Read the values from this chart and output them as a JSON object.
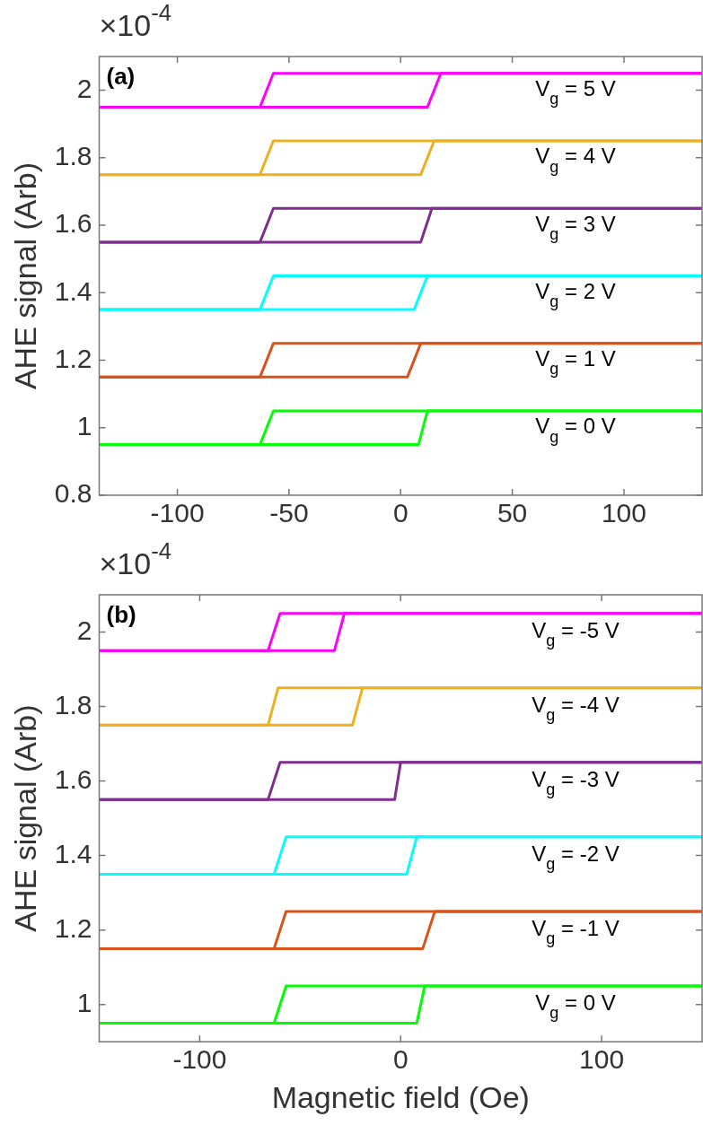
{
  "chart_data": [
    {
      "type": "line",
      "ylabel": "AHE signal (Arb)",
      "annotations": [
        "(a)",
        "×10$^{-4}$"
      ],
      "xlim": [
        -135,
        135
      ],
      "xticks": [
        -100,
        -50,
        0,
        50,
        100
      ],
      "ylim": [
        0.8,
        2.1
      ],
      "yticks": [
        0.8,
        1,
        1.2,
        1.4,
        1.6,
        1.8,
        2
      ],
      "series": [
        {
          "name": "V$_{g}$ = 5 V",
          "color": "#ff00ff",
          "x": [
            -135,
            12,
            18,
            135
          ],
          "values": [
            1.95,
            1.95,
            2.05,
            2.05
          ]
        },
        {
          "color": "#ff00ff",
          "x": [
            -135,
            -63,
            -57,
            135
          ],
          "values": [
            1.95,
            1.95,
            2.05,
            2.05
          ]
        },
        {
          "name": "V$_{g}$ = 4 V",
          "color": "#edb120",
          "x": [
            -135,
            9,
            15,
            135
          ],
          "values": [
            1.75,
            1.75,
            1.85,
            1.85
          ]
        },
        {
          "color": "#edb120",
          "x": [
            -135,
            -63,
            -57,
            135
          ],
          "values": [
            1.75,
            1.75,
            1.85,
            1.85
          ]
        },
        {
          "name": "V$_{g}$ = 3 V",
          "color": "#7e2f8e",
          "x": [
            -135,
            9,
            14,
            135
          ],
          "values": [
            1.55,
            1.55,
            1.65,
            1.65
          ]
        },
        {
          "color": "#7e2f8e",
          "x": [
            -135,
            -63,
            -57,
            135
          ],
          "values": [
            1.55,
            1.55,
            1.65,
            1.65
          ]
        },
        {
          "name": "V$_{g}$ = 2 V",
          "color": "#00ffff",
          "x": [
            -135,
            6,
            12,
            135
          ],
          "values": [
            1.35,
            1.35,
            1.45,
            1.45
          ]
        },
        {
          "color": "#00ffff",
          "x": [
            -135,
            -63,
            -57,
            135
          ],
          "values": [
            1.35,
            1.35,
            1.45,
            1.45
          ]
        },
        {
          "name": "V$_{g}$ = 1 V",
          "color": "#d95319",
          "x": [
            -135,
            3,
            9,
            135
          ],
          "values": [
            1.15,
            1.15,
            1.25,
            1.25
          ]
        },
        {
          "color": "#d95319",
          "x": [
            -135,
            -63,
            -57,
            135
          ],
          "values": [
            1.15,
            1.15,
            1.25,
            1.25
          ]
        },
        {
          "name": "V$_{g}$ = 0 V",
          "color": "#00ff00",
          "x": [
            -135,
            8,
            12,
            135
          ],
          "values": [
            0.95,
            0.95,
            1.05,
            1.05
          ]
        },
        {
          "color": "#00ff00",
          "x": [
            -135,
            -63,
            -57,
            135
          ],
          "values": [
            0.95,
            0.95,
            1.05,
            1.05
          ]
        }
      ]
    },
    {
      "type": "line",
      "xlabel": "Magnetic field (Oe)",
      "ylabel": "AHE signal (Arb)",
      "annotations": [
        "(b)",
        "×10$^{-4}$"
      ],
      "xlim": [
        -150,
        150
      ],
      "xticks": [
        -100,
        0,
        100
      ],
      "ylim": [
        0.9,
        2.1
      ],
      "yticks": [
        1,
        1.2,
        1.4,
        1.6,
        1.8,
        2
      ],
      "series": [
        {
          "name": "V$_{g}$ = -5 V",
          "color": "#ff00ff",
          "x": [
            -150,
            -33,
            -28,
            150
          ],
          "values": [
            1.95,
            1.95,
            2.05,
            2.05
          ]
        },
        {
          "color": "#ff00ff",
          "x": [
            -150,
            -66,
            -60,
            150
          ],
          "values": [
            1.95,
            1.95,
            2.05,
            2.05
          ]
        },
        {
          "name": "V$_{g}$ = -4 V",
          "color": "#edb120",
          "x": [
            -150,
            -24,
            -19,
            150
          ],
          "values": [
            1.75,
            1.75,
            1.85,
            1.85
          ]
        },
        {
          "color": "#edb120",
          "x": [
            -150,
            -66,
            -61,
            150
          ],
          "values": [
            1.75,
            1.75,
            1.85,
            1.85
          ]
        },
        {
          "name": "V$_{g}$ = -3 V",
          "color": "#7e2f8e",
          "x": [
            -150,
            -3,
            0,
            150
          ],
          "values": [
            1.55,
            1.55,
            1.65,
            1.65
          ]
        },
        {
          "color": "#7e2f8e",
          "x": [
            -150,
            -66,
            -60,
            150
          ],
          "values": [
            1.55,
            1.55,
            1.65,
            1.65
          ]
        },
        {
          "name": "V$_{g}$ = -2 V",
          "color": "#00ffff",
          "x": [
            -150,
            3,
            8,
            150
          ],
          "values": [
            1.35,
            1.35,
            1.45,
            1.45
          ]
        },
        {
          "color": "#00ffff",
          "x": [
            -150,
            -63,
            -57,
            150
          ],
          "values": [
            1.35,
            1.35,
            1.45,
            1.45
          ]
        },
        {
          "name": "V$_{g}$ = -1 V",
          "color": "#d95319",
          "x": [
            -150,
            11,
            17,
            150
          ],
          "values": [
            1.15,
            1.15,
            1.25,
            1.25
          ]
        },
        {
          "color": "#d95319",
          "x": [
            -150,
            -63,
            -57,
            150
          ],
          "values": [
            1.15,
            1.15,
            1.25,
            1.25
          ]
        },
        {
          "name": "V$_{g}$ = 0 V",
          "color": "#00ff00",
          "x": [
            -150,
            8,
            12,
            150
          ],
          "values": [
            0.95,
            0.95,
            1.05,
            1.05
          ]
        },
        {
          "color": "#00ff00",
          "x": [
            -150,
            -63,
            -57,
            150
          ],
          "values": [
            0.95,
            0.95,
            1.05,
            1.05
          ]
        }
      ]
    }
  ]
}
